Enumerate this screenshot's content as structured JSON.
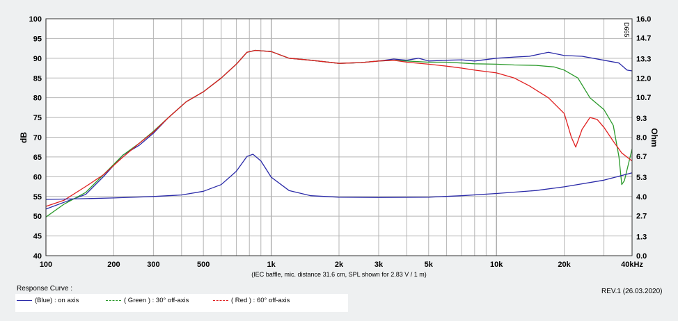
{
  "chart_data": {
    "type": "line",
    "xscale": "log",
    "xlim": [
      100,
      40000
    ],
    "ylim": [
      40,
      100
    ],
    "y2lim": [
      0,
      16
    ],
    "ylabel": "dB",
    "y2label": "Ohm",
    "x_ticks": [
      100,
      200,
      300,
      500,
      1000,
      2000,
      3000,
      5000,
      10000,
      20000,
      40000
    ],
    "x_tick_labels": [
      "100",
      "200",
      "300",
      "500",
      "1k",
      "2k",
      "3k",
      "5k",
      "10k",
      "20k",
      "40kHz"
    ],
    "y_ticks": [
      40,
      45,
      50,
      55,
      60,
      65,
      70,
      75,
      80,
      85,
      90,
      95,
      100
    ],
    "y_tick_labels": [
      "40",
      "45",
      "50",
      "55",
      "60",
      "65",
      "70",
      "75",
      "80",
      "85",
      "90",
      "95",
      "100"
    ],
    "y2_ticks": [
      0,
      1.3,
      2.7,
      4.0,
      5.3,
      6.7,
      8.0,
      9.3,
      10.7,
      12.0,
      13.3,
      14.7,
      16.0
    ],
    "y2_tick_labels": [
      "0.0",
      "1.3",
      "2.7",
      "4.0",
      "5.3",
      "6.7",
      "8.0",
      "9.3",
      "10.7",
      "12.0",
      "13.3",
      "14.7",
      "16.0"
    ],
    "annotation": "(IEC baffle, mic. distance 31.6 cm, SPL shown for 2.83 V / 1 m)",
    "watermark": "D665",
    "series": [
      {
        "name": "(Blue) : on axis",
        "color": "#2a2aa8",
        "axis": "left",
        "points": [
          [
            100,
            51.8
          ],
          [
            120,
            53.5
          ],
          [
            150,
            55.5
          ],
          [
            180,
            60
          ],
          [
            220,
            65.5
          ],
          [
            260,
            68
          ],
          [
            300,
            71
          ],
          [
            350,
            75
          ],
          [
            420,
            79
          ],
          [
            500,
            81.5
          ],
          [
            600,
            85
          ],
          [
            700,
            88.5
          ],
          [
            780,
            91.5
          ],
          [
            850,
            92
          ],
          [
            1000,
            91.7
          ],
          [
            1200,
            90
          ],
          [
            1500,
            89.5
          ],
          [
            2000,
            88.7
          ],
          [
            2500,
            88.9
          ],
          [
            3000,
            89.3
          ],
          [
            3500,
            89.8
          ],
          [
            4000,
            89.5
          ],
          [
            4500,
            90
          ],
          [
            5000,
            89.3
          ],
          [
            6000,
            89.5
          ],
          [
            7000,
            89.6
          ],
          [
            8000,
            89.3
          ],
          [
            10000,
            90
          ],
          [
            12000,
            90.3
          ],
          [
            14000,
            90.5
          ],
          [
            17000,
            91.5
          ],
          [
            20000,
            90.7
          ],
          [
            24000,
            90.5
          ],
          [
            30000,
            89.5
          ],
          [
            35000,
            88.8
          ],
          [
            38000,
            87
          ],
          [
            40000,
            86.8
          ]
        ]
      },
      {
        "name": "( Green ) : 30° off-axis",
        "color": "#2b9a2b",
        "axis": "left",
        "points": [
          [
            100,
            49.8
          ],
          [
            120,
            53
          ],
          [
            150,
            56
          ],
          [
            180,
            60.5
          ],
          [
            220,
            65.5
          ],
          [
            260,
            68.5
          ],
          [
            300,
            71.5
          ],
          [
            350,
            75
          ],
          [
            420,
            79
          ],
          [
            500,
            81.5
          ],
          [
            600,
            85
          ],
          [
            700,
            88.5
          ],
          [
            780,
            91.5
          ],
          [
            850,
            92
          ],
          [
            1000,
            91.7
          ],
          [
            1200,
            90
          ],
          [
            1500,
            89.5
          ],
          [
            2000,
            88.7
          ],
          [
            2500,
            88.9
          ],
          [
            3000,
            89.3
          ],
          [
            3500,
            89.5
          ],
          [
            4000,
            89.3
          ],
          [
            5000,
            89
          ],
          [
            6000,
            89
          ],
          [
            7000,
            88.8
          ],
          [
            8000,
            88.6
          ],
          [
            10000,
            88.5
          ],
          [
            12000,
            88.3
          ],
          [
            15000,
            88.2
          ],
          [
            18000,
            87.8
          ],
          [
            20000,
            87
          ],
          [
            23000,
            85
          ],
          [
            26000,
            80
          ],
          [
            30000,
            77
          ],
          [
            33000,
            73
          ],
          [
            35000,
            65
          ],
          [
            36000,
            58
          ],
          [
            37000,
            59
          ],
          [
            40000,
            67
          ]
        ]
      },
      {
        "name": "( Red ) : 60° off-axis",
        "color": "#e02020",
        "axis": "left",
        "points": [
          [
            100,
            52.5
          ],
          [
            120,
            54
          ],
          [
            150,
            57.5
          ],
          [
            180,
            60.5
          ],
          [
            220,
            65
          ],
          [
            260,
            68.5
          ],
          [
            300,
            71.3
          ],
          [
            350,
            75
          ],
          [
            420,
            79
          ],
          [
            500,
            81.5
          ],
          [
            600,
            85
          ],
          [
            700,
            88.5
          ],
          [
            780,
            91.5
          ],
          [
            850,
            92
          ],
          [
            1000,
            91.7
          ],
          [
            1200,
            90
          ],
          [
            1500,
            89.5
          ],
          [
            2000,
            88.7
          ],
          [
            2500,
            88.9
          ],
          [
            3000,
            89.3
          ],
          [
            3500,
            89.5
          ],
          [
            4000,
            89
          ],
          [
            5000,
            88.5
          ],
          [
            6000,
            88
          ],
          [
            7000,
            87.5
          ],
          [
            8000,
            87
          ],
          [
            10000,
            86.3
          ],
          [
            12000,
            85
          ],
          [
            14000,
            83
          ],
          [
            17000,
            80
          ],
          [
            20000,
            76
          ],
          [
            21500,
            70
          ],
          [
            22500,
            67.5
          ],
          [
            24000,
            72
          ],
          [
            26000,
            75
          ],
          [
            28000,
            74.5
          ],
          [
            30000,
            72.5
          ],
          [
            33000,
            69
          ],
          [
            36000,
            66
          ],
          [
            40000,
            64
          ]
        ]
      },
      {
        "name": "Impedance",
        "color": "#2a2aa8",
        "axis": "right",
        "points": [
          [
            100,
            3.8
          ],
          [
            150,
            3.85
          ],
          [
            200,
            3.9
          ],
          [
            300,
            4.0
          ],
          [
            400,
            4.1
          ],
          [
            500,
            4.35
          ],
          [
            600,
            4.8
          ],
          [
            700,
            5.7
          ],
          [
            780,
            6.7
          ],
          [
            830,
            6.85
          ],
          [
            900,
            6.4
          ],
          [
            1000,
            5.3
          ],
          [
            1200,
            4.4
          ],
          [
            1500,
            4.05
          ],
          [
            2000,
            3.95
          ],
          [
            3000,
            3.93
          ],
          [
            5000,
            3.95
          ],
          [
            7000,
            4.05
          ],
          [
            10000,
            4.2
          ],
          [
            15000,
            4.4
          ],
          [
            20000,
            4.65
          ],
          [
            30000,
            5.1
          ],
          [
            40000,
            5.6
          ]
        ]
      }
    ]
  },
  "legend": {
    "title": "Response Curve :",
    "items": [
      {
        "label": "(Blue)  : on axis",
        "color": "#2a2aa8"
      },
      {
        "label": "( Green ) : 30° off-axis",
        "color": "#2b9a2b"
      },
      {
        "label": "( Red ) : 60° off-axis",
        "color": "#e02020"
      }
    ]
  },
  "revision": "REV.1 (26.03.2020)"
}
